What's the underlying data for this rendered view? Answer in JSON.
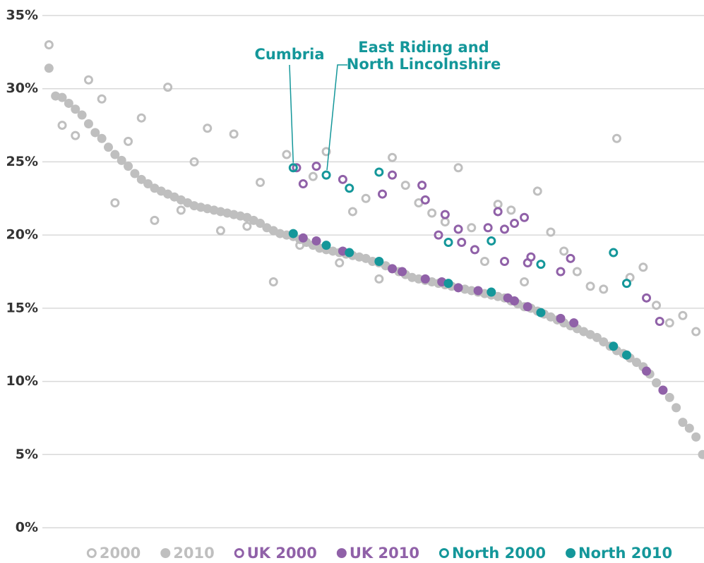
{
  "chart_data": {
    "type": "scatter",
    "ylim": [
      0,
      35
    ],
    "yticks": [
      {
        "value": 0,
        "label": "0%"
      },
      {
        "value": 5,
        "label": "5%"
      },
      {
        "value": 10,
        "label": "10%"
      },
      {
        "value": 15,
        "label": "15%"
      },
      {
        "value": 20,
        "label": "20%"
      },
      {
        "value": 25,
        "label": "25%"
      },
      {
        "value": 30,
        "label": "30%"
      },
      {
        "value": 35,
        "label": "35%"
      }
    ],
    "xlim": [
      0,
      200
    ],
    "grid": true,
    "legend": "bottom",
    "annotations": [
      {
        "text": [
          "Cumbria"
        ],
        "series": 4,
        "point": 0
      },
      {
        "text": [
          "East Riding and",
          "North Lincolnshire"
        ],
        "series": 4,
        "point": 1
      }
    ],
    "series": [
      {
        "name": "2000",
        "color": "#bfbfbf",
        "filled": false,
        "x": [
          2,
          6,
          10,
          14,
          18,
          22,
          26,
          30,
          34,
          38,
          42,
          46,
          50,
          54,
          58,
          62,
          66,
          70,
          74,
          78,
          82,
          86,
          90,
          94,
          98,
          102,
          106,
          110,
          114,
          118,
          122,
          126,
          130,
          134,
          138,
          142,
          146,
          150,
          154,
          158,
          162,
          166,
          170,
          174,
          178,
          182,
          186,
          190,
          194,
          198
        ],
        "values": [
          33.0,
          27.5,
          26.8,
          30.6,
          29.3,
          22.2,
          26.4,
          28.0,
          21.0,
          30.1,
          21.7,
          25.0,
          27.3,
          20.3,
          26.9,
          20.6,
          23.6,
          16.8,
          25.5,
          19.3,
          24.0,
          25.7,
          18.1,
          21.6,
          22.5,
          17.0,
          25.3,
          23.4,
          22.2,
          21.5,
          20.9,
          24.6,
          20.5,
          18.2,
          22.1,
          21.7,
          16.8,
          23.0,
          20.2,
          18.9,
          17.5,
          16.5,
          16.3,
          26.6,
          17.1,
          17.8,
          15.2,
          14.0,
          14.5,
          13.4
        ]
      },
      {
        "name": "2010",
        "color": "#bfbfbf",
        "filled": true,
        "x": [
          2,
          4,
          6,
          8,
          10,
          12,
          14,
          16,
          18,
          20,
          22,
          24,
          26,
          28,
          30,
          32,
          34,
          36,
          38,
          40,
          42,
          44,
          46,
          48,
          50,
          52,
          54,
          56,
          58,
          60,
          62,
          64,
          66,
          68,
          70,
          72,
          74,
          76,
          78,
          80,
          82,
          84,
          86,
          88,
          90,
          92,
          94,
          96,
          98,
          100,
          102,
          104,
          106,
          108,
          110,
          112,
          114,
          116,
          118,
          120,
          122,
          124,
          126,
          128,
          130,
          132,
          134,
          136,
          138,
          140,
          142,
          144,
          146,
          148,
          150,
          152,
          154,
          156,
          158,
          160,
          162,
          164,
          166,
          168,
          170,
          172,
          174,
          176,
          178,
          180,
          182,
          184,
          186,
          188,
          190,
          192,
          194,
          196,
          198,
          200
        ],
        "values": [
          31.4,
          29.5,
          29.4,
          29.0,
          28.6,
          28.2,
          27.6,
          27.0,
          26.6,
          26.0,
          25.5,
          25.1,
          24.7,
          24.2,
          23.8,
          23.5,
          23.2,
          23.0,
          22.8,
          22.6,
          22.4,
          22.2,
          22.0,
          21.9,
          21.8,
          21.7,
          21.6,
          21.5,
          21.4,
          21.3,
          21.2,
          21.0,
          20.8,
          20.5,
          20.3,
          20.1,
          20.0,
          19.9,
          19.7,
          19.5,
          19.3,
          19.1,
          19.0,
          18.9,
          18.8,
          18.7,
          18.6,
          18.5,
          18.4,
          18.2,
          18.1,
          17.9,
          17.7,
          17.5,
          17.3,
          17.1,
          17.0,
          16.9,
          16.8,
          16.7,
          16.6,
          16.5,
          16.4,
          16.3,
          16.2,
          16.1,
          16.0,
          15.9,
          15.8,
          15.7,
          15.5,
          15.3,
          15.1,
          15.0,
          14.8,
          14.6,
          14.4,
          14.2,
          14.0,
          13.8,
          13.6,
          13.4,
          13.2,
          13.0,
          12.7,
          12.4,
          12.1,
          11.9,
          11.6,
          11.3,
          11.0,
          10.5,
          9.9,
          9.4,
          8.9,
          8.2,
          7.2,
          6.8,
          6.2,
          5.0
        ]
      },
      {
        "name": "UK 2000",
        "color": "#9061a8",
        "filled": false,
        "x": [
          77,
          83,
          79,
          91,
          103,
          106,
          115,
          116,
          122,
          120,
          126,
          127,
          131,
          135,
          138,
          140,
          143,
          146,
          140,
          147,
          148,
          157,
          160,
          183,
          187
        ],
        "values": [
          24.6,
          24.7,
          23.5,
          23.8,
          22.8,
          24.1,
          23.4,
          22.4,
          21.4,
          20.0,
          20.4,
          19.5,
          19.0,
          20.5,
          21.6,
          20.4,
          20.8,
          21.2,
          18.2,
          18.1,
          18.5,
          17.5,
          18.4,
          15.7,
          14.1
        ]
      },
      {
        "name": "UK 2010",
        "color": "#9061a8",
        "filled": true,
        "x": [
          79,
          83,
          91,
          106,
          109,
          116,
          121,
          126,
          132,
          141,
          143,
          147,
          157,
          161,
          183,
          188
        ],
        "values": [
          19.8,
          19.6,
          18.9,
          17.7,
          17.5,
          17.0,
          16.8,
          16.4,
          16.2,
          15.7,
          15.5,
          15.1,
          14.3,
          14.0,
          10.7,
          9.4
        ]
      },
      {
        "name": "North 2000",
        "color": "#14979a",
        "filled": false,
        "x": [
          76,
          86,
          93,
          102,
          123,
          136,
          151,
          173,
          177
        ],
        "values": [
          24.6,
          24.1,
          23.2,
          24.3,
          19.5,
          19.6,
          18.0,
          18.8,
          16.7
        ]
      },
      {
        "name": "North 2010",
        "color": "#14979a",
        "filled": true,
        "x": [
          76,
          86,
          93,
          102,
          123,
          136,
          151,
          173,
          177
        ],
        "values": [
          20.1,
          19.3,
          18.8,
          18.2,
          16.7,
          16.1,
          14.7,
          12.4,
          11.8
        ]
      }
    ]
  }
}
